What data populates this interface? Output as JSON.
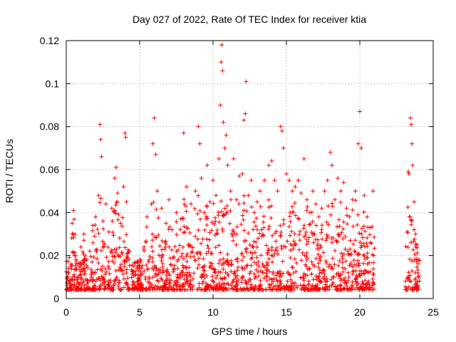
{
  "chart_data": {
    "type": "scatter",
    "title": "Day 027 of 2022, Rate Of TEC Index for receiver ktia",
    "xlabel": "GPS time / hours",
    "ylabel": "ROTI / TECUs",
    "xlim": [
      0,
      25
    ],
    "ylim": [
      0,
      0.12
    ],
    "xticks": [
      0,
      5,
      10,
      15,
      20,
      25
    ],
    "xtick_labels": [
      "0",
      "5",
      "10",
      "15",
      "20",
      "25"
    ],
    "yticks": [
      0,
      0.02,
      0.04,
      0.06,
      0.08,
      0.1,
      0.12
    ],
    "ytick_labels": [
      "0",
      "0.02",
      "0.04",
      "0.06",
      "0.08",
      "0.1",
      "0.12"
    ],
    "grid": true,
    "marker": "plus",
    "marker_color": "#ff0000",
    "data_gap_hours": [
      21.0,
      23.1
    ],
    "points": [
      [
        0.1,
        0.012
      ],
      [
        0.2,
        0.019
      ],
      [
        0.3,
        0.015
      ],
      [
        0.4,
        0.035
      ],
      [
        0.5,
        0.041
      ],
      [
        0.6,
        0.02
      ],
      [
        0.8,
        0.016
      ],
      [
        1.0,
        0.024
      ],
      [
        1.2,
        0.03
      ],
      [
        1.4,
        0.018
      ],
      [
        1.6,
        0.022
      ],
      [
        1.8,
        0.034
      ],
      [
        2.0,
        0.038
      ],
      [
        2.2,
        0.048
      ],
      [
        2.3,
        0.081
      ],
      [
        2.35,
        0.074
      ],
      [
        2.4,
        0.066
      ],
      [
        2.5,
        0.036
      ],
      [
        2.7,
        0.044
      ],
      [
        2.9,
        0.031
      ],
      [
        3.1,
        0.042
      ],
      [
        3.3,
        0.056
      ],
      [
        3.4,
        0.061
      ],
      [
        3.5,
        0.049
      ],
      [
        3.7,
        0.035
      ],
      [
        3.9,
        0.052
      ],
      [
        4.0,
        0.077
      ],
      [
        4.05,
        0.075
      ],
      [
        4.1,
        0.045
      ],
      [
        4.3,
        0.022
      ],
      [
        4.6,
        0.015
      ],
      [
        5.0,
        0.018
      ],
      [
        5.3,
        0.024
      ],
      [
        5.5,
        0.038
      ],
      [
        5.8,
        0.044
      ],
      [
        5.9,
        0.072
      ],
      [
        6.0,
        0.084
      ],
      [
        6.1,
        0.067
      ],
      [
        6.2,
        0.05
      ],
      [
        6.5,
        0.042
      ],
      [
        6.8,
        0.035
      ],
      [
        7.0,
        0.046
      ],
      [
        7.2,
        0.032
      ],
      [
        7.5,
        0.04
      ],
      [
        7.8,
        0.037
      ],
      [
        8.0,
        0.077
      ],
      [
        8.2,
        0.052
      ],
      [
        8.5,
        0.044
      ],
      [
        8.8,
        0.05
      ],
      [
        9.0,
        0.08
      ],
      [
        9.1,
        0.072
      ],
      [
        9.2,
        0.056
      ],
      [
        9.4,
        0.04
      ],
      [
        9.6,
        0.062
      ],
      [
        9.8,
        0.045
      ],
      [
        10.0,
        0.055
      ],
      [
        10.2,
        0.048
      ],
      [
        10.4,
        0.065
      ],
      [
        10.5,
        0.09
      ],
      [
        10.55,
        0.11
      ],
      [
        10.6,
        0.118
      ],
      [
        10.65,
        0.106
      ],
      [
        10.7,
        0.082
      ],
      [
        10.8,
        0.07
      ],
      [
        10.9,
        0.076
      ],
      [
        11.0,
        0.062
      ],
      [
        11.2,
        0.05
      ],
      [
        11.4,
        0.065
      ],
      [
        11.6,
        0.046
      ],
      [
        11.8,
        0.057
      ],
      [
        12.0,
        0.058
      ],
      [
        12.1,
        0.083
      ],
      [
        12.2,
        0.086
      ],
      [
        12.25,
        0.101
      ],
      [
        12.4,
        0.048
      ],
      [
        12.6,
        0.055
      ],
      [
        12.8,
        0.04
      ],
      [
        13.0,
        0.045
      ],
      [
        13.2,
        0.05
      ],
      [
        13.5,
        0.055
      ],
      [
        13.8,
        0.062
      ],
      [
        14.0,
        0.064
      ],
      [
        14.2,
        0.055
      ],
      [
        14.4,
        0.05
      ],
      [
        14.6,
        0.08
      ],
      [
        14.7,
        0.078
      ],
      [
        14.8,
        0.07
      ],
      [
        15.0,
        0.058
      ],
      [
        15.2,
        0.055
      ],
      [
        15.4,
        0.05
      ],
      [
        15.6,
        0.052
      ],
      [
        15.8,
        0.055
      ],
      [
        16.0,
        0.049
      ],
      [
        16.2,
        0.065
      ],
      [
        16.4,
        0.046
      ],
      [
        16.6,
        0.04
      ],
      [
        16.8,
        0.05
      ],
      [
        17.0,
        0.044
      ],
      [
        17.2,
        0.038
      ],
      [
        17.4,
        0.042
      ],
      [
        17.6,
        0.05
      ],
      [
        17.8,
        0.055
      ],
      [
        18.0,
        0.068
      ],
      [
        18.1,
        0.062
      ],
      [
        18.3,
        0.046
      ],
      [
        18.5,
        0.056
      ],
      [
        18.7,
        0.05
      ],
      [
        18.9,
        0.054
      ],
      [
        19.1,
        0.042
      ],
      [
        19.3,
        0.038
      ],
      [
        19.5,
        0.046
      ],
      [
        19.7,
        0.05
      ],
      [
        19.9,
        0.072
      ],
      [
        20.0,
        0.087
      ],
      [
        20.1,
        0.07
      ],
      [
        20.3,
        0.048
      ],
      [
        20.5,
        0.038
      ],
      [
        20.7,
        0.033
      ],
      [
        20.9,
        0.05
      ],
      [
        23.3,
        0.059
      ],
      [
        23.35,
        0.058
      ],
      [
        23.45,
        0.084
      ],
      [
        23.5,
        0.081
      ],
      [
        23.55,
        0.072
      ],
      [
        23.6,
        0.062
      ],
      [
        23.7,
        0.045
      ],
      [
        23.8,
        0.03
      ],
      [
        23.9,
        0.025
      ],
      [
        24.0,
        0.01
      ]
    ]
  }
}
